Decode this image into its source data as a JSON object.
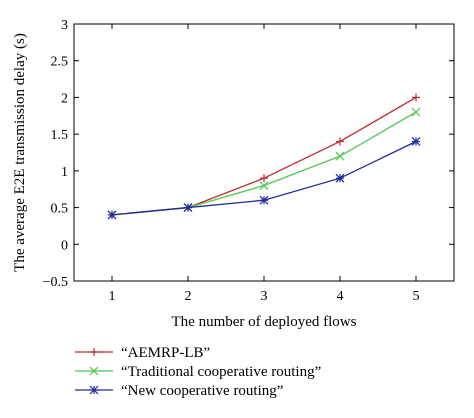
{
  "chart_data": {
    "type": "line",
    "xlabel": "The number of deployed flows",
    "ylabel": "The average E2E transmission delay (s)",
    "x": [
      1,
      2,
      3,
      4,
      5
    ],
    "xticks": [
      "1",
      "2",
      "3",
      "4",
      "5"
    ],
    "xlim": [
      0.5,
      5.5
    ],
    "ylim": [
      -0.5,
      3
    ],
    "yticks": [
      "−0.5",
      "0",
      "0.5",
      "1",
      "1.5",
      "2",
      "2.5",
      "3"
    ],
    "grid": false,
    "legend_position": "below plot",
    "series": [
      {
        "name": "“AEMRP-LB”",
        "values": [
          0.4,
          0.5,
          0.9,
          1.4,
          2.0
        ],
        "color": "#c0282d",
        "marker": "plus"
      },
      {
        "name": "“Traditional cooperative routing”",
        "values": [
          0.4,
          0.5,
          0.8,
          1.2,
          1.8
        ],
        "color": "#4cc94c",
        "marker": "x"
      },
      {
        "name": "“New cooperative routing”",
        "values": [
          0.4,
          0.5,
          0.6,
          0.9,
          1.4
        ],
        "color": "#1f2a9c",
        "marker": "star"
      }
    ]
  }
}
